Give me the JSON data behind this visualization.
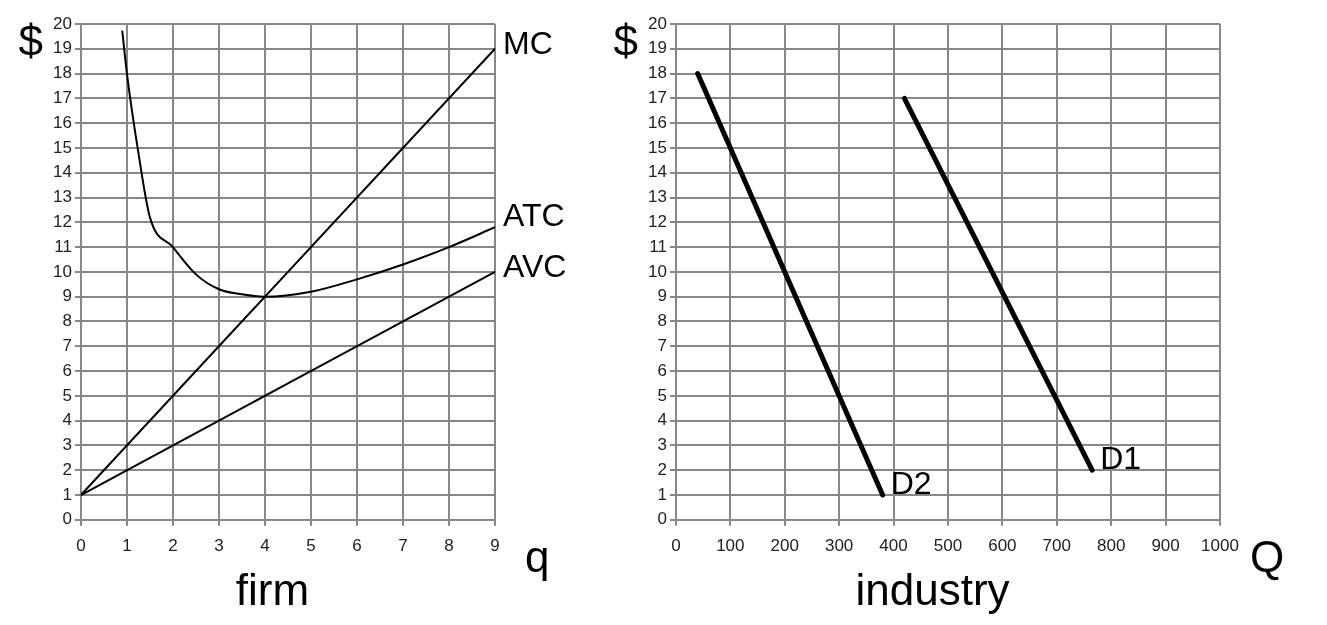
{
  "chart_data": [
    {
      "type": "line",
      "title": "firm",
      "xlabel": "q",
      "ylabel": "$",
      "xlim": [
        0,
        9
      ],
      "ylim": [
        0,
        20
      ],
      "xticks": [
        0,
        1,
        2,
        3,
        4,
        5,
        6,
        7,
        8,
        9
      ],
      "yticks": [
        0,
        1,
        2,
        3,
        4,
        5,
        6,
        7,
        8,
        9,
        10,
        11,
        12,
        13,
        14,
        15,
        16,
        17,
        18,
        19,
        20
      ],
      "grid": true,
      "legend": false,
      "marker": "none",
      "line_style": "solid",
      "series": [
        {
          "name": "MC",
          "color": "#000000",
          "x": [
            0,
            9
          ],
          "values": [
            1,
            19
          ]
        },
        {
          "name": "ATC",
          "color": "#000000",
          "x": [
            0.9,
            1,
            1.25,
            1.5,
            2,
            2.5,
            3,
            3.5,
            4,
            5,
            6,
            7,
            8,
            9
          ],
          "values": [
            19.7,
            18,
            14.8,
            12.2,
            11,
            9.9,
            9.3,
            9.1,
            9,
            9.2,
            9.7,
            10.3,
            11,
            11.8
          ]
        },
        {
          "name": "AVC",
          "color": "#000000",
          "x": [
            0,
            9
          ],
          "values": [
            1,
            10
          ]
        }
      ]
    },
    {
      "type": "line",
      "title": "industry",
      "xlabel": "Q",
      "ylabel": "$",
      "xlim": [
        0,
        1000
      ],
      "ylim": [
        0,
        20
      ],
      "xticks": [
        0,
        100,
        200,
        300,
        400,
        500,
        600,
        700,
        800,
        900,
        1000
      ],
      "yticks": [
        0,
        1,
        2,
        3,
        4,
        5,
        6,
        7,
        8,
        9,
        10,
        11,
        12,
        13,
        14,
        15,
        16,
        17,
        18,
        19,
        20
      ],
      "grid": true,
      "legend": false,
      "marker": "none",
      "line_style": "solid",
      "series": [
        {
          "name": "D2",
          "color": "#000000",
          "x": [
            40,
            380
          ],
          "values": [
            18,
            1
          ]
        },
        {
          "name": "D1",
          "color": "#000000",
          "x": [
            420,
            765
          ],
          "values": [
            17,
            2
          ]
        }
      ]
    }
  ]
}
